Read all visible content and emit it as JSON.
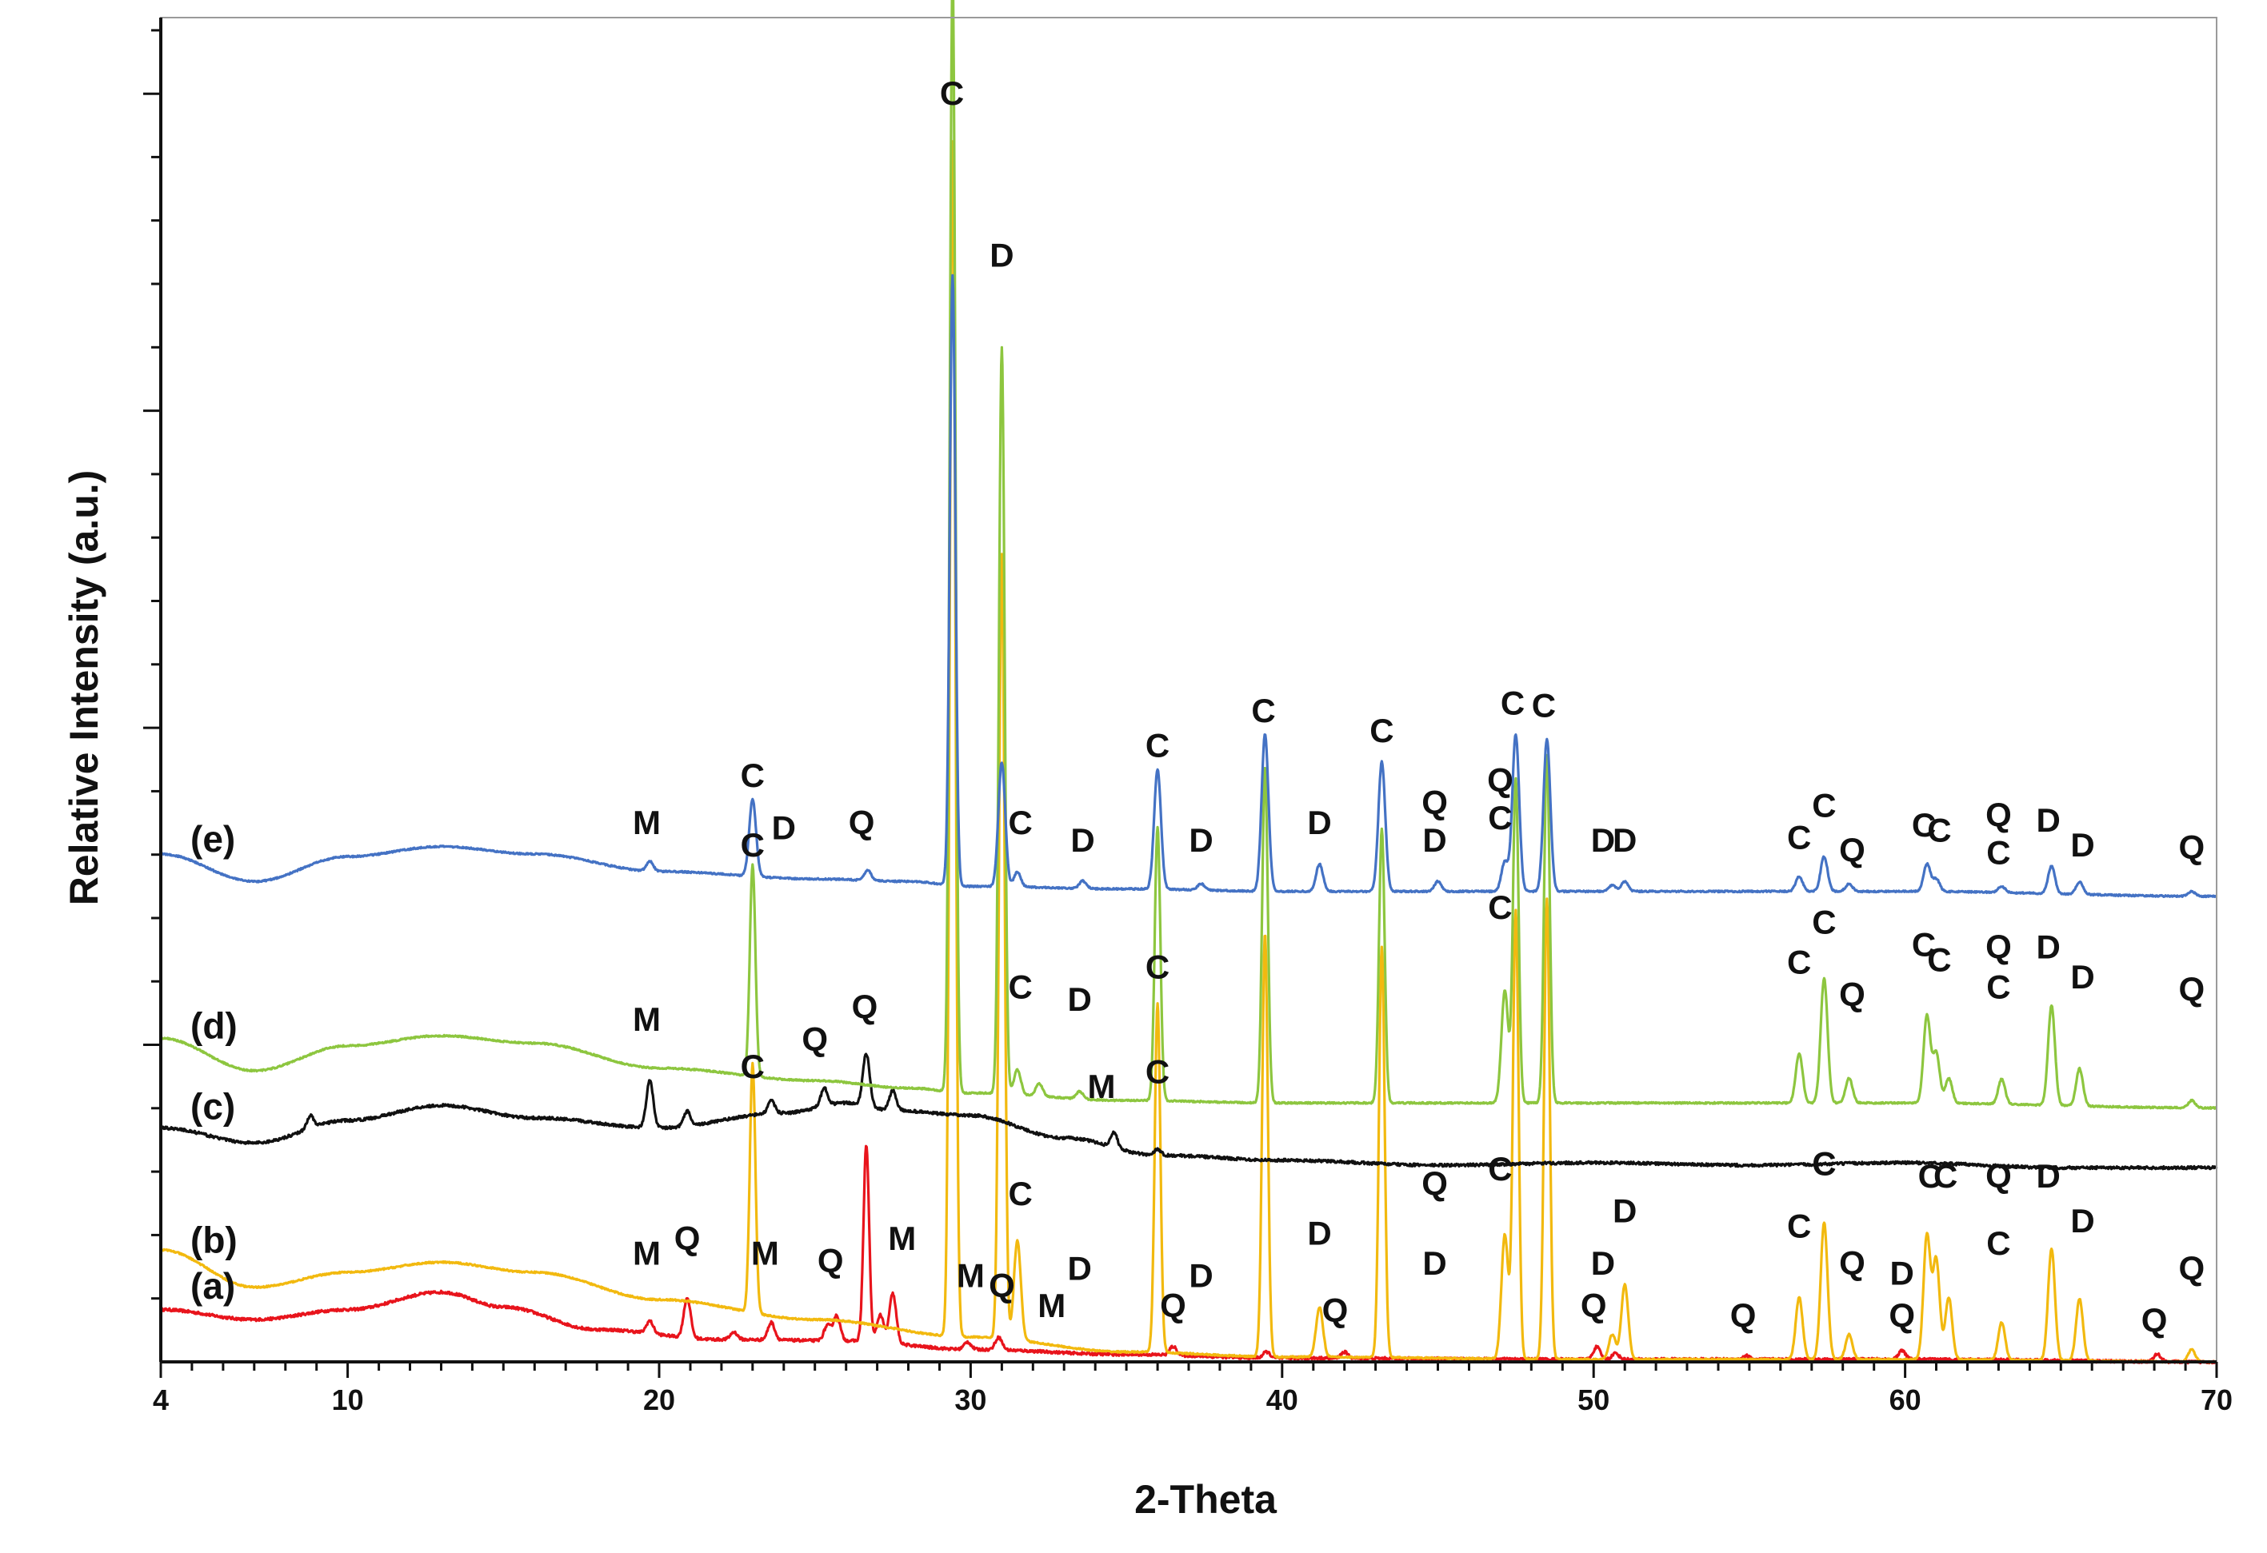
{
  "chart_data": {
    "type": "line",
    "xlabel": "2-Theta",
    "ylabel": "Relative Intensity (a.u.)",
    "xlim": [
      4,
      70
    ],
    "xticks": [
      4,
      10,
      20,
      30,
      40,
      50,
      60,
      70
    ],
    "xtick_labels": [
      "4",
      "10",
      "20",
      "30",
      "40",
      "50",
      "60",
      "70"
    ],
    "grid": false,
    "series": [
      {
        "name": "(a)",
        "color": "#e8141c",
        "baseline": [
          [
            4,
            0.42
          ],
          [
            7,
            0.34
          ],
          [
            10,
            0.42
          ],
          [
            13,
            0.56
          ],
          [
            15,
            0.44
          ],
          [
            18,
            0.26
          ],
          [
            22,
            0.18
          ],
          [
            26,
            0.17
          ],
          [
            30,
            0.1
          ],
          [
            35,
            0.06
          ],
          [
            40,
            0.03
          ],
          [
            50,
            0.02
          ],
          [
            60,
            0.02
          ],
          [
            70,
            0.0
          ]
        ],
        "peaks": [
          [
            19.7,
            0.1
          ],
          [
            20.9,
            0.32
          ],
          [
            22.4,
            0.06
          ],
          [
            23.6,
            0.14
          ],
          [
            25.4,
            0.12
          ],
          [
            25.7,
            0.2
          ],
          [
            26.65,
            1.58
          ],
          [
            27.1,
            0.22
          ],
          [
            27.5,
            0.4
          ],
          [
            29.9,
            0.06
          ],
          [
            30.9,
            0.1
          ],
          [
            36.5,
            0.07
          ],
          [
            39.5,
            0.05
          ],
          [
            42.0,
            0.05
          ],
          [
            50.1,
            0.1
          ],
          [
            50.7,
            0.05
          ],
          [
            54.9,
            0.03
          ],
          [
            59.9,
            0.07
          ],
          [
            68.1,
            0.06
          ]
        ],
        "labels": [
          {
            "text": "M",
            "x": 19.6,
            "y": 0.78
          },
          {
            "text": "Q",
            "x": 20.9,
            "y": 0.9
          },
          {
            "text": "M",
            "x": 23.4,
            "y": 0.78
          },
          {
            "text": "Q",
            "x": 25.5,
            "y": 0.72
          },
          {
            "text": "M",
            "x": 27.8,
            "y": 0.9
          },
          {
            "text": "M",
            "x": 30.0,
            "y": 0.6
          },
          {
            "text": "Q",
            "x": 31.0,
            "y": 0.52
          },
          {
            "text": "M",
            "x": 32.6,
            "y": 0.36
          },
          {
            "text": "Q",
            "x": 36.5,
            "y": 0.36
          },
          {
            "text": "Q",
            "x": 41.7,
            "y": 0.32
          },
          {
            "text": "Q",
            "x": 50.0,
            "y": 0.36
          },
          {
            "text": "Q",
            "x": 54.8,
            "y": 0.28
          },
          {
            "text": "Q",
            "x": 59.9,
            "y": 0.28
          },
          {
            "text": "Q",
            "x": 68.0,
            "y": 0.24
          }
        ]
      },
      {
        "name": "(b)",
        "color": "#f2b90f",
        "baseline": [
          [
            4,
            0.9
          ],
          [
            7,
            0.6
          ],
          [
            10,
            0.72
          ],
          [
            13,
            0.8
          ],
          [
            16,
            0.72
          ],
          [
            20,
            0.5
          ],
          [
            25,
            0.34
          ],
          [
            30,
            0.2
          ],
          [
            35,
            0.08
          ],
          [
            40,
            0.04
          ],
          [
            50,
            0.02
          ],
          [
            60,
            0.02
          ],
          [
            70,
            0.0
          ]
        ],
        "peaks": [
          [
            23.0,
            2.0
          ],
          [
            29.42,
            9.6
          ],
          [
            31.0,
            6.3
          ],
          [
            31.5,
            0.8
          ],
          [
            36.0,
            2.8
          ],
          [
            39.45,
            3.4
          ],
          [
            41.2,
            0.4
          ],
          [
            43.2,
            3.3
          ],
          [
            47.15,
            1.0
          ],
          [
            47.5,
            3.6
          ],
          [
            48.5,
            3.7
          ],
          [
            50.6,
            0.2
          ],
          [
            51.0,
            0.6
          ],
          [
            56.6,
            0.5
          ],
          [
            57.4,
            1.1
          ],
          [
            58.2,
            0.2
          ],
          [
            60.7,
            1.0
          ],
          [
            61.0,
            0.8
          ],
          [
            61.4,
            0.5
          ],
          [
            63.1,
            0.3
          ],
          [
            64.7,
            0.9
          ],
          [
            65.6,
            0.5
          ],
          [
            69.2,
            0.1
          ]
        ],
        "labels": [
          {
            "text": "C",
            "x": 23.0,
            "y": 2.28
          },
          {
            "text": "C",
            "x": 31.6,
            "y": 1.26
          },
          {
            "text": "D",
            "x": 33.5,
            "y": 0.66
          },
          {
            "text": "C",
            "x": 36.0,
            "y": 3.08
          },
          {
            "text": "D",
            "x": 37.4,
            "y": 0.6
          },
          {
            "text": "D",
            "x": 41.2,
            "y": 0.94
          },
          {
            "text": "Q",
            "x": 44.9,
            "y": 1.34
          },
          {
            "text": "D",
            "x": 44.9,
            "y": 0.7
          },
          {
            "text": "C",
            "x": 47.0,
            "y": 1.46
          },
          {
            "text": "D",
            "x": 50.3,
            "y": 0.7
          },
          {
            "text": "D",
            "x": 51.0,
            "y": 1.12
          },
          {
            "text": "C",
            "x": 56.6,
            "y": 1.0
          },
          {
            "text": "C",
            "x": 57.4,
            "y": 1.5
          },
          {
            "text": "Q",
            "x": 58.3,
            "y": 0.7
          },
          {
            "text": "D",
            "x": 59.9,
            "y": 0.62
          },
          {
            "text": "C",
            "x": 60.8,
            "y": 1.4
          },
          {
            "text": "C",
            "x": 61.3,
            "y": 1.4
          },
          {
            "text": "Q",
            "x": 63.0,
            "y": 1.4
          },
          {
            "text": "C",
            "x": 63.0,
            "y": 0.86
          },
          {
            "text": "D",
            "x": 64.6,
            "y": 1.4
          },
          {
            "text": "D",
            "x": 65.7,
            "y": 1.04
          },
          {
            "text": "Q",
            "x": 69.2,
            "y": 0.66
          }
        ]
      },
      {
        "name": "(c)",
        "color": "#111111",
        "baseline": [
          [
            4,
            1.88
          ],
          [
            7,
            1.76
          ],
          [
            10,
            1.94
          ],
          [
            13,
            2.06
          ],
          [
            16,
            1.96
          ],
          [
            20,
            1.88
          ],
          [
            24,
            2.0
          ],
          [
            26,
            2.08
          ],
          [
            27.5,
            2.02
          ],
          [
            30,
            1.98
          ],
          [
            33,
            1.8
          ],
          [
            36,
            1.66
          ],
          [
            40,
            1.62
          ],
          [
            45,
            1.58
          ],
          [
            50,
            1.6
          ],
          [
            55,
            1.58
          ],
          [
            60,
            1.6
          ],
          [
            65,
            1.56
          ],
          [
            70,
            1.56
          ]
        ],
        "peaks": [
          [
            8.8,
            0.1
          ],
          [
            19.7,
            0.38
          ],
          [
            20.9,
            0.12
          ],
          [
            23.6,
            0.1
          ],
          [
            25.3,
            0.14
          ],
          [
            26.65,
            0.42
          ],
          [
            27.5,
            0.16
          ],
          [
            34.6,
            0.12
          ],
          [
            36.0,
            0.05
          ]
        ],
        "labels": [
          {
            "text": "M",
            "x": 19.6,
            "y": 2.66
          },
          {
            "text": "Q",
            "x": 25.0,
            "y": 2.5
          },
          {
            "text": "Q",
            "x": 26.6,
            "y": 2.76
          },
          {
            "text": "M",
            "x": 34.2,
            "y": 2.12
          },
          {
            "text": "C",
            "x": 36.0,
            "y": 2.24
          }
        ]
      },
      {
        "name": "(d)",
        "color": "#8dc63f",
        "baseline": [
          [
            4,
            2.6
          ],
          [
            7,
            2.34
          ],
          [
            10,
            2.54
          ],
          [
            13,
            2.62
          ],
          [
            16,
            2.56
          ],
          [
            20,
            2.36
          ],
          [
            25,
            2.26
          ],
          [
            28,
            2.2
          ],
          [
            30,
            2.16
          ],
          [
            35,
            2.1
          ],
          [
            40,
            2.08
          ],
          [
            50,
            2.08
          ],
          [
            60,
            2.08
          ],
          [
            70,
            2.04
          ]
        ],
        "peaks": [
          [
            23.0,
            1.7
          ],
          [
            29.42,
            9.0
          ],
          [
            31.0,
            6.0
          ],
          [
            31.5,
            0.2
          ],
          [
            32.2,
            0.1
          ],
          [
            33.5,
            0.06
          ],
          [
            36.0,
            2.2
          ],
          [
            39.45,
            2.7
          ],
          [
            43.2,
            2.2
          ],
          [
            47.15,
            0.9
          ],
          [
            47.5,
            2.6
          ],
          [
            48.5,
            2.8
          ],
          [
            56.6,
            0.4
          ],
          [
            57.4,
            1.0
          ],
          [
            58.2,
            0.2
          ],
          [
            60.7,
            0.7
          ],
          [
            61.0,
            0.4
          ],
          [
            61.4,
            0.2
          ],
          [
            63.1,
            0.2
          ],
          [
            64.7,
            0.8
          ],
          [
            65.6,
            0.3
          ],
          [
            69.2,
            0.06
          ]
        ],
        "labels": [
          {
            "text": "C",
            "x": 23.0,
            "y": 4.06
          },
          {
            "text": "C",
            "x": 31.6,
            "y": 2.92
          },
          {
            "text": "D",
            "x": 33.5,
            "y": 2.82
          },
          {
            "text": "C",
            "x": 47.0,
            "y": 3.56
          },
          {
            "text": "C",
            "x": 56.6,
            "y": 3.12
          },
          {
            "text": "C",
            "x": 57.4,
            "y": 3.44
          },
          {
            "text": "Q",
            "x": 58.3,
            "y": 2.86
          },
          {
            "text": "C",
            "x": 60.6,
            "y": 3.26
          },
          {
            "text": "C",
            "x": 61.1,
            "y": 3.14
          },
          {
            "text": "Q",
            "x": 63.0,
            "y": 3.24
          },
          {
            "text": "C",
            "x": 63.0,
            "y": 2.92
          },
          {
            "text": "D",
            "x": 64.6,
            "y": 3.24
          },
          {
            "text": "D",
            "x": 65.7,
            "y": 3.0
          },
          {
            "text": "Q",
            "x": 69.2,
            "y": 2.9
          }
        ]
      },
      {
        "name": "(e)",
        "color": "#4472c4",
        "baseline": [
          [
            4,
            4.08
          ],
          [
            7,
            3.86
          ],
          [
            10,
            4.06
          ],
          [
            13,
            4.14
          ],
          [
            16,
            4.08
          ],
          [
            20,
            3.94
          ],
          [
            25,
            3.88
          ],
          [
            28,
            3.86
          ],
          [
            30,
            3.82
          ],
          [
            35,
            3.8
          ],
          [
            40,
            3.78
          ],
          [
            50,
            3.78
          ],
          [
            60,
            3.78
          ],
          [
            70,
            3.74
          ]
        ],
        "peaks": [
          [
            19.7,
            0.08
          ],
          [
            23.0,
            0.62
          ],
          [
            26.7,
            0.08
          ],
          [
            29.42,
            4.9
          ],
          [
            31.0,
            1.0
          ],
          [
            31.5,
            0.12
          ],
          [
            33.6,
            0.06
          ],
          [
            37.4,
            0.05
          ],
          [
            36.0,
            0.96
          ],
          [
            39.45,
            1.26
          ],
          [
            41.2,
            0.22
          ],
          [
            43.2,
            1.04
          ],
          [
            45.0,
            0.08
          ],
          [
            47.15,
            0.24
          ],
          [
            47.5,
            1.26
          ],
          [
            48.5,
            1.22
          ],
          [
            50.6,
            0.05
          ],
          [
            51.0,
            0.08
          ],
          [
            56.6,
            0.12
          ],
          [
            57.4,
            0.28
          ],
          [
            58.2,
            0.06
          ],
          [
            60.7,
            0.22
          ],
          [
            61.0,
            0.1
          ],
          [
            63.1,
            0.05
          ],
          [
            64.7,
            0.22
          ],
          [
            65.6,
            0.1
          ],
          [
            69.2,
            0.04
          ]
        ],
        "labels": [
          {
            "text": "M",
            "x": 19.6,
            "y": 4.24
          },
          {
            "text": "C",
            "x": 23.0,
            "y": 4.62
          },
          {
            "text": "D",
            "x": 24.0,
            "y": 4.2
          },
          {
            "text": "Q",
            "x": 26.5,
            "y": 4.24
          },
          {
            "text": "C",
            "x": 29.4,
            "y": 10.1
          },
          {
            "text": "D",
            "x": 31.0,
            "y": 8.8
          },
          {
            "text": "C",
            "x": 31.6,
            "y": 4.24
          },
          {
            "text": "D",
            "x": 33.6,
            "y": 4.1
          },
          {
            "text": "C",
            "x": 36.0,
            "y": 4.86
          },
          {
            "text": "D",
            "x": 37.4,
            "y": 4.1
          },
          {
            "text": "C",
            "x": 39.4,
            "y": 5.14
          },
          {
            "text": "D",
            "x": 41.2,
            "y": 4.24
          },
          {
            "text": "C",
            "x": 43.2,
            "y": 4.98
          },
          {
            "text": "Q",
            "x": 44.9,
            "y": 4.4
          },
          {
            "text": "D",
            "x": 44.9,
            "y": 4.1
          },
          {
            "text": "Q",
            "x": 47.0,
            "y": 4.58
          },
          {
            "text": "C",
            "x": 47.0,
            "y": 4.28
          },
          {
            "text": "C",
            "x": 47.4,
            "y": 5.2
          },
          {
            "text": "C",
            "x": 48.4,
            "y": 5.18
          },
          {
            "text": "D",
            "x": 50.3,
            "y": 4.1
          },
          {
            "text": "D",
            "x": 51.0,
            "y": 4.1
          },
          {
            "text": "C",
            "x": 56.6,
            "y": 4.12
          },
          {
            "text": "C",
            "x": 57.4,
            "y": 4.38
          },
          {
            "text": "Q",
            "x": 58.3,
            "y": 4.02
          },
          {
            "text": "C",
            "x": 60.6,
            "y": 4.22
          },
          {
            "text": "C",
            "x": 61.1,
            "y": 4.18
          },
          {
            "text": "Q",
            "x": 63.0,
            "y": 4.3
          },
          {
            "text": "C",
            "x": 63.0,
            "y": 4.0
          },
          {
            "text": "D",
            "x": 64.6,
            "y": 4.26
          },
          {
            "text": "D",
            "x": 65.7,
            "y": 4.06
          },
          {
            "text": "Q",
            "x": 69.2,
            "y": 4.04
          }
        ]
      }
    ]
  }
}
